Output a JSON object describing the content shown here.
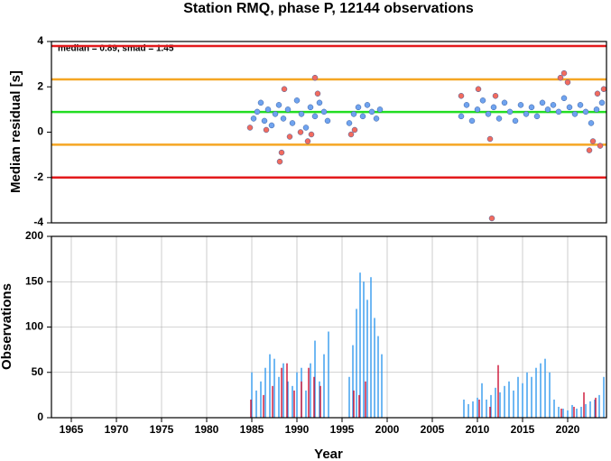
{
  "chart_data": [
    {
      "type": "scatter",
      "title": "Station RMQ, phase P, 12144 observations",
      "y_label": "Median residual [s]",
      "annotation": "median = 0.89, smad = 1.45",
      "xlim": [
        1962.8,
        2024.3
      ],
      "ylim": [
        -4,
        4
      ],
      "yticks": [
        -4,
        -2,
        0,
        2,
        4
      ],
      "hlines": [
        {
          "value": 3.8,
          "color": "#e31a1c"
        },
        {
          "value": 2.33,
          "color": "#f5a623"
        },
        {
          "value": 0.89,
          "color": "#22dd22"
        },
        {
          "value": -0.55,
          "color": "#f5a623"
        },
        {
          "value": -2.0,
          "color": "#e31a1c"
        }
      ],
      "series": [
        {
          "color": "#6fa3ef",
          "x": [
            1985.2,
            1985.6,
            1986.0,
            1986.4,
            1986.8,
            1987.2,
            1987.6,
            1988.0,
            1988.5,
            1989.0,
            1989.5,
            1990.0,
            1990.5,
            1991.0,
            1991.5,
            1992.0,
            1992.5,
            1993.0,
            1993.4,
            1995.8,
            1996.3,
            1996.8,
            1997.3,
            1997.8,
            1998.3,
            1998.8,
            1999.2,
            2008.2,
            2008.8,
            2009.4,
            2010.0,
            2010.6,
            2011.2,
            2011.8,
            2012.4,
            2013.0,
            2013.6,
            2014.2,
            2014.8,
            2015.4,
            2016.0,
            2016.6,
            2017.2,
            2017.8,
            2018.4,
            2019.0,
            2019.6,
            2020.2,
            2020.8,
            2021.4,
            2022.0,
            2022.6,
            2023.2,
            2023.8
          ],
          "values": [
            0.6,
            0.9,
            1.3,
            0.5,
            1.0,
            0.3,
            0.8,
            1.2,
            0.6,
            1.0,
            0.4,
            1.4,
            0.8,
            0.2,
            1.1,
            0.7,
            1.3,
            0.9,
            0.5,
            0.4,
            0.8,
            1.1,
            0.7,
            1.2,
            0.9,
            0.6,
            1.0,
            0.7,
            1.2,
            0.5,
            1.0,
            1.4,
            0.8,
            1.1,
            0.6,
            1.3,
            0.9,
            0.5,
            1.2,
            0.8,
            1.1,
            0.7,
            1.3,
            1.0,
            1.2,
            0.9,
            1.5,
            1.1,
            0.8,
            1.2,
            0.9,
            0.4,
            1.0,
            1.3
          ]
        },
        {
          "color": "#f26b5e",
          "x": [
            1984.8,
            1986.6,
            1988.1,
            1988.3,
            1988.6,
            1989.2,
            1990.4,
            1991.2,
            1991.6,
            1992.0,
            1992.3,
            1996.0,
            1996.4,
            2008.2,
            2010.1,
            2011.4,
            2011.6,
            2012.0,
            2019.2,
            2019.6,
            2020.0,
            2022.4,
            2022.8,
            2023.3,
            2023.6,
            2024.0
          ],
          "values": [
            0.2,
            0.1,
            -1.3,
            -0.9,
            1.9,
            -0.2,
            0.0,
            -0.4,
            -0.1,
            2.4,
            1.7,
            -0.1,
            0.1,
            1.6,
            1.9,
            -0.3,
            -3.8,
            1.6,
            2.4,
            2.6,
            2.2,
            -0.8,
            -0.4,
            1.7,
            -0.6,
            1.9
          ]
        }
      ]
    },
    {
      "type": "bar",
      "x_label": "Year",
      "y_label": "Observations",
      "grid": true,
      "xlim": [
        1962.8,
        2024.3
      ],
      "xticks": [
        1965,
        1970,
        1975,
        1980,
        1985,
        1990,
        1995,
        2000,
        2005,
        2010,
        2015,
        2020
      ],
      "ylim": [
        0,
        200
      ],
      "yticks": [
        0,
        50,
        100,
        150,
        200
      ],
      "series": [
        {
          "color": "#3399ee",
          "x": [
            1985.0,
            1985.5,
            1986.0,
            1986.5,
            1987.0,
            1987.5,
            1988.0,
            1988.5,
            1989.0,
            1989.5,
            1990.0,
            1990.5,
            1991.0,
            1991.5,
            1992.0,
            1992.5,
            1993.0,
            1993.5,
            1995.8,
            1996.2,
            1996.6,
            1997.0,
            1997.4,
            1997.8,
            1998.2,
            1998.6,
            1999.0,
            1999.4,
            2008.5,
            2009.0,
            2009.5,
            2010.0,
            2010.5,
            2011.0,
            2011.5,
            2012.0,
            2012.5,
            2013.0,
            2013.5,
            2014.0,
            2014.5,
            2015.0,
            2015.5,
            2016.0,
            2016.5,
            2017.0,
            2017.5,
            2018.0,
            2018.5,
            2019.0,
            2019.5,
            2020.0,
            2020.5,
            2021.0,
            2021.5,
            2022.0,
            2022.5,
            2023.0,
            2023.5,
            2024.0
          ],
          "values": [
            50,
            30,
            40,
            55,
            70,
            65,
            45,
            60,
            40,
            35,
            50,
            55,
            30,
            60,
            85,
            40,
            70,
            95,
            45,
            80,
            120,
            160,
            150,
            130,
            155,
            110,
            90,
            70,
            20,
            15,
            18,
            22,
            38,
            20,
            25,
            33,
            28,
            35,
            40,
            30,
            45,
            38,
            50,
            45,
            55,
            60,
            65,
            50,
            20,
            12,
            10,
            8,
            14,
            10,
            12,
            15,
            18,
            20,
            25,
            45
          ]
        },
        {
          "color": "#cc1133",
          "x": [
            1984.9,
            1986.3,
            1987.3,
            1988.3,
            1988.9,
            1989.7,
            1990.5,
            1991.3,
            1991.9,
            1992.6,
            1996.3,
            1996.9,
            1997.6,
            2010.2,
            2011.4,
            2012.3,
            2019.3,
            2020.7,
            2021.8,
            2023.1
          ],
          "values": [
            20,
            25,
            35,
            55,
            60,
            30,
            40,
            55,
            45,
            35,
            30,
            25,
            40,
            20,
            12,
            58,
            10,
            12,
            28,
            22
          ]
        }
      ]
    }
  ]
}
